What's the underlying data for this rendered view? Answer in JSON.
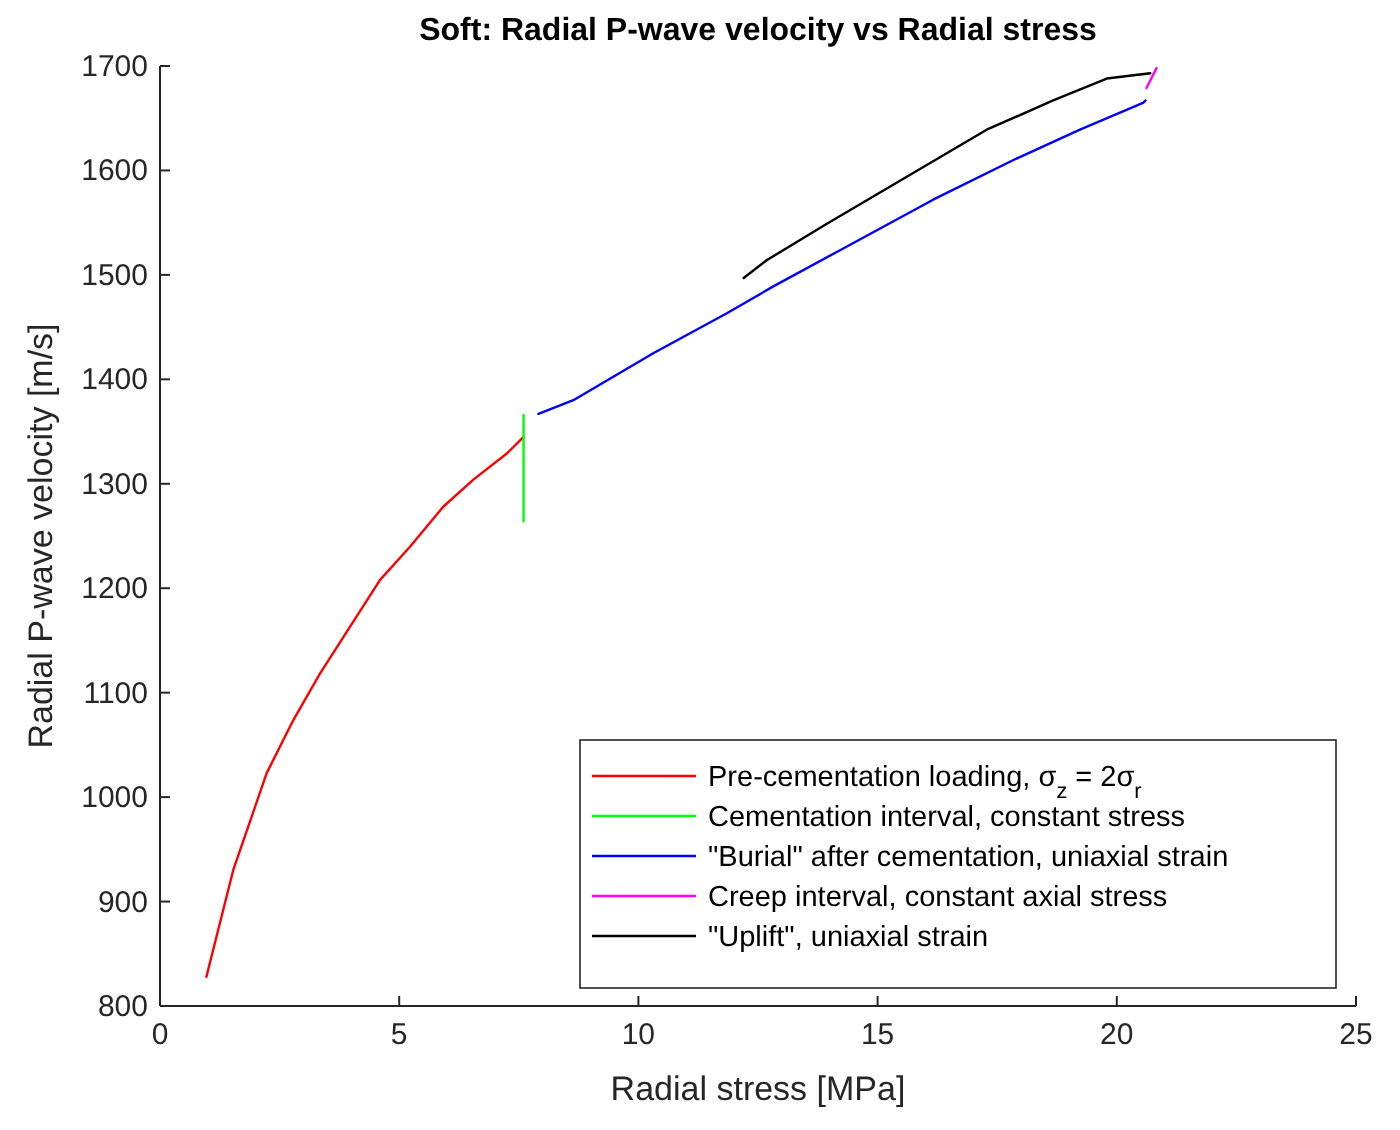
{
  "chart_data": {
    "type": "line",
    "title": "Soft: Radial P-wave velocity vs Radial stress",
    "xlabel": "Radial stress [MPa]",
    "ylabel": "Radial P-wave velocity [m/s]",
    "xlim": [
      0,
      25
    ],
    "xticks": [
      0,
      5,
      10,
      15,
      20,
      25
    ],
    "ylim": [
      800,
      1700
    ],
    "yticks": [
      800,
      900,
      1000,
      1100,
      1200,
      1300,
      1400,
      1500,
      1600,
      1700
    ],
    "grid": false,
    "legend": "bottom right",
    "marker": "none",
    "line_style": "solid",
    "series": [
      {
        "name": "Pre-cementation loading, σ$_{z}$ = 2σ$_{r}$",
        "color": "#ff0000",
        "x": [
          0.97,
          1.53,
          2.23,
          2.79,
          3.34,
          3.97,
          4.6,
          5.23,
          5.92,
          6.55,
          7.25,
          7.6
        ],
        "values": [
          828,
          930,
          1023,
          1074,
          1118,
          1163,
          1208,
          1240,
          1278,
          1304,
          1329,
          1345
        ]
      },
      {
        "name": "Cementation interval, constant stress",
        "color": "#00ff00",
        "x": [
          7.6,
          7.6,
          7.6
        ],
        "values": [
          1345,
          1366,
          1264
        ]
      },
      {
        "name": "\"Burial\" after cementation, uniaxial strain",
        "color": "#0000ff",
        "x": [
          7.91,
          8.64,
          10.31,
          11.84,
          12.82,
          14.35,
          16.16,
          17.84,
          19.23,
          20.56,
          20.6
        ],
        "values": [
          1367,
          1380,
          1425,
          1463,
          1489,
          1527,
          1572,
          1610,
          1639,
          1665,
          1667
        ]
      },
      {
        "name": "Creep interval, constant axial stress",
        "color": "#ff00ff",
        "x": [
          20.62,
          20.83
        ],
        "values": [
          1679,
          1698
        ]
      },
      {
        "name": "\"Uplift\", uniaxial strain",
        "color": "#000000",
        "x": [
          20.7,
          19.79,
          18.67,
          17.28,
          15.61,
          13.94,
          12.68,
          12.2
        ],
        "values": [
          1693,
          1688,
          1667,
          1639,
          1594,
          1549,
          1514,
          1497
        ]
      }
    ]
  }
}
